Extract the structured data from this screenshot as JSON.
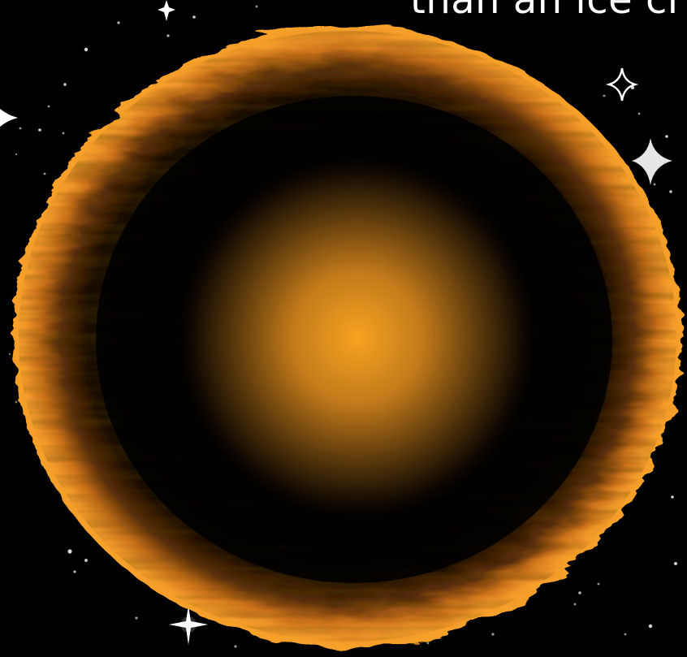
{
  "caption": {
    "text": "than an ice cr"
  },
  "colors": {
    "background": "#000000",
    "rim_light": "#f7a22a",
    "rim_mid": "#d9771a",
    "rim_dark": "#3a1d05",
    "core": "#f7a321",
    "star": "#ffffff"
  },
  "icons": {
    "sparkle": "four-point-sparkle-icon",
    "star_dot": "star-dot-icon"
  }
}
